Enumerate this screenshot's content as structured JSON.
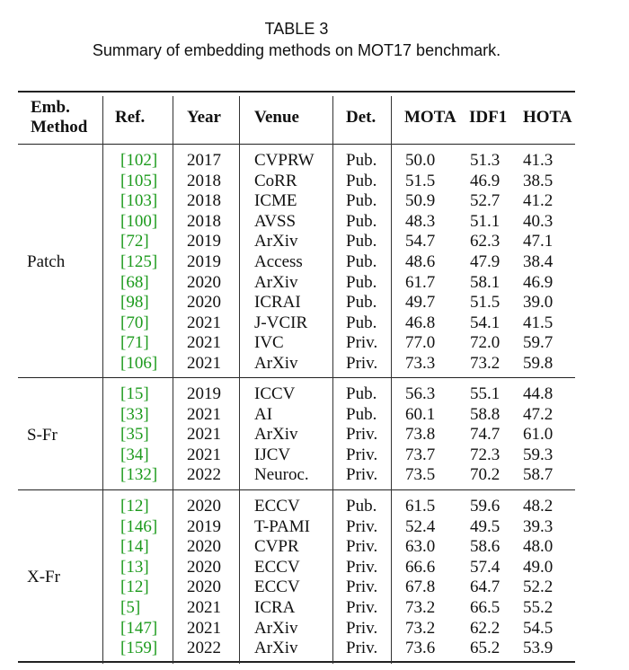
{
  "table": {
    "label": "TABLE 3",
    "caption": "Summary of embedding methods on MOT17 benchmark.",
    "headers": {
      "method_line1": "Emb.",
      "method_line2": "Method",
      "ref": "Ref.",
      "year": "Year",
      "venue": "Venue",
      "det": "Det.",
      "mota": "MOTA",
      "idf1": "IDF1",
      "hota": "HOTA"
    },
    "groups": [
      {
        "name": "Patch",
        "rows": [
          {
            "ref": "[102]",
            "year": "2017",
            "venue": "CVPRW",
            "det": "Pub.",
            "mota": "50.0",
            "idf1": "51.3",
            "hota": "41.3"
          },
          {
            "ref": "[105]",
            "year": "2018",
            "venue": "CoRR",
            "det": "Pub.",
            "mota": "51.5",
            "idf1": "46.9",
            "hota": "38.5"
          },
          {
            "ref": "[103]",
            "year": "2018",
            "venue": "ICME",
            "det": "Pub.",
            "mota": "50.9",
            "idf1": "52.7",
            "hota": "41.2"
          },
          {
            "ref": "[100]",
            "year": "2018",
            "venue": "AVSS",
            "det": "Pub.",
            "mota": "48.3",
            "idf1": "51.1",
            "hota": "40.3"
          },
          {
            "ref": "[72]",
            "year": "2019",
            "venue": "ArXiv",
            "det": "Pub.",
            "mota": "54.7",
            "idf1": "62.3",
            "hota": "47.1"
          },
          {
            "ref": "[125]",
            "year": "2019",
            "venue": "Access",
            "det": "Pub.",
            "mota": "48.6",
            "idf1": "47.9",
            "hota": "38.4"
          },
          {
            "ref": "[68]",
            "year": "2020",
            "venue": "ArXiv",
            "det": "Pub.",
            "mota": "61.7",
            "idf1": "58.1",
            "hota": "46.9"
          },
          {
            "ref": "[98]",
            "year": "2020",
            "venue": "ICRAI",
            "det": "Pub.",
            "mota": "49.7",
            "idf1": "51.5",
            "hota": "39.0"
          },
          {
            "ref": "[70]",
            "year": "2021",
            "venue": "J-VCIR",
            "det": "Pub.",
            "mota": "46.8",
            "idf1": "54.1",
            "hota": "41.5"
          },
          {
            "ref": "[71]",
            "year": "2021",
            "venue": "IVC",
            "det": "Priv.",
            "mota": "77.0",
            "idf1": "72.0",
            "hota": "59.7"
          },
          {
            "ref": "[106]",
            "year": "2021",
            "venue": "ArXiv",
            "det": "Priv.",
            "mota": "73.3",
            "idf1": "73.2",
            "hota": "59.8"
          }
        ]
      },
      {
        "name": "S-Fr",
        "rows": [
          {
            "ref": "[15]",
            "year": "2019",
            "venue": "ICCV",
            "det": "Pub.",
            "mota": "56.3",
            "idf1": "55.1",
            "hota": "44.8"
          },
          {
            "ref": "[33]",
            "year": "2021",
            "venue": "AI",
            "det": "Pub.",
            "mota": "60.1",
            "idf1": "58.8",
            "hota": "47.2"
          },
          {
            "ref": "[35]",
            "year": "2021",
            "venue": "ArXiv",
            "det": "Priv.",
            "mota": "73.8",
            "idf1": "74.7",
            "hota": "61.0"
          },
          {
            "ref": "[34]",
            "year": "2021",
            "venue": "IJCV",
            "det": "Priv.",
            "mota": "73.7",
            "idf1": "72.3",
            "hota": "59.3"
          },
          {
            "ref": "[132]",
            "year": "2022",
            "venue": "Neuroc.",
            "det": "Priv.",
            "mota": "73.5",
            "idf1": "70.2",
            "hota": "58.7"
          }
        ]
      },
      {
        "name": "X-Fr",
        "rows": [
          {
            "ref": "[12]",
            "year": "2020",
            "venue": "ECCV",
            "det": "Pub.",
            "mota": "61.5",
            "idf1": "59.6",
            "hota": "48.2"
          },
          {
            "ref": "[146]",
            "year": "2019",
            "venue": "T-PAMI",
            "det": "Priv.",
            "mota": "52.4",
            "idf1": "49.5",
            "hota": "39.3"
          },
          {
            "ref": "[14]",
            "year": "2020",
            "venue": "CVPR",
            "det": "Priv.",
            "mota": "63.0",
            "idf1": "58.6",
            "hota": "48.0"
          },
          {
            "ref": "[13]",
            "year": "2020",
            "venue": "ECCV",
            "det": "Priv.",
            "mota": "66.6",
            "idf1": "57.4",
            "hota": "49.0"
          },
          {
            "ref": "[12]",
            "year": "2020",
            "venue": "ECCV",
            "det": "Priv.",
            "mota": "67.8",
            "idf1": "64.7",
            "hota": "52.2"
          },
          {
            "ref": "[5]",
            "year": "2021",
            "venue": "ICRA",
            "det": "Priv.",
            "mota": "73.2",
            "idf1": "66.5",
            "hota": "55.2"
          },
          {
            "ref": "[147]",
            "year": "2021",
            "venue": "ArXiv",
            "det": "Priv.",
            "mota": "73.2",
            "idf1": "62.2",
            "hota": "54.5"
          },
          {
            "ref": "[159]",
            "year": "2022",
            "venue": "ArXiv",
            "det": "Priv.",
            "mota": "73.6",
            "idf1": "65.2",
            "hota": "53.9"
          }
        ]
      }
    ]
  }
}
